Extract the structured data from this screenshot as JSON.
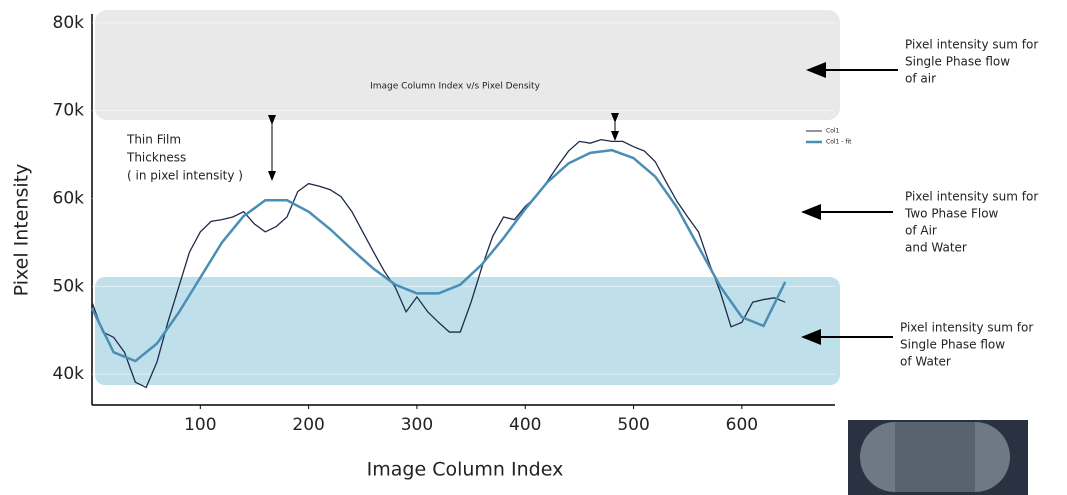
{
  "chart_data": {
    "type": "line",
    "title": "Image Column Index v/s Pixel Density",
    "x_label": "Image Column Index",
    "y_label": "Pixel Intensity",
    "xlim": [
      0,
      686
    ],
    "xticks": [
      100,
      200,
      300,
      400,
      500,
      600
    ],
    "ylim": [
      36500,
      81000
    ],
    "yticks": [
      {
        "value": 40000,
        "label": "40k"
      },
      {
        "value": 50000,
        "label": "50k"
      },
      {
        "value": 60000,
        "label": "60k"
      },
      {
        "value": 70000,
        "label": "70k"
      },
      {
        "value": 80000,
        "label": "80k"
      }
    ],
    "series": [
      {
        "name": "Col1",
        "color": "#1e2a4a",
        "x": [
          0,
          10,
          20,
          30,
          40,
          50,
          60,
          70,
          80,
          90,
          100,
          110,
          120,
          130,
          140,
          150,
          160,
          170,
          180,
          190,
          200,
          210,
          220,
          230,
          240,
          250,
          260,
          270,
          280,
          290,
          300,
          310,
          320,
          330,
          340,
          350,
          360,
          370,
          380,
          390,
          400,
          410,
          420,
          430,
          440,
          450,
          460,
          470,
          480,
          490,
          500,
          510,
          520,
          530,
          540,
          550,
          560,
          570,
          580,
          590,
          600,
          610,
          620,
          630,
          640
        ],
        "values": [
          48200,
          44800,
          44200,
          42500,
          39100,
          38500,
          41400,
          45900,
          49900,
          53900,
          56200,
          57400,
          57600,
          57900,
          58500,
          57100,
          56200,
          56800,
          57900,
          60800,
          61700,
          61400,
          61000,
          60200,
          58500,
          56200,
          53900,
          51700,
          49900,
          47100,
          48800,
          47100,
          45900,
          44800,
          44800,
          48200,
          52200,
          55700,
          57900,
          57600,
          59100,
          60200,
          61900,
          63700,
          65400,
          66500,
          66300,
          66700,
          66500,
          66500,
          65900,
          65400,
          64200,
          61900,
          59700,
          57900,
          56200,
          52600,
          49400,
          45400,
          45900,
          48200,
          48500,
          48700,
          48200
        ]
      },
      {
        "name": "Col1 - fit",
        "color": "#4a8db5",
        "x": [
          0,
          20,
          40,
          60,
          80,
          100,
          120,
          140,
          160,
          180,
          200,
          220,
          240,
          260,
          280,
          300,
          320,
          340,
          360,
          380,
          400,
          420,
          440,
          460,
          480,
          500,
          520,
          540,
          560,
          580,
          600,
          620,
          640
        ],
        "values": [
          47500,
          42500,
          41500,
          43500,
          47000,
          51000,
          55000,
          58000,
          59800,
          59800,
          58500,
          56500,
          54200,
          52000,
          50200,
          49200,
          49200,
          50200,
          52500,
          55500,
          58800,
          61800,
          64000,
          65200,
          65500,
          64600,
          62500,
          59000,
          54500,
          50000,
          46500,
          45500,
          50500
        ]
      }
    ],
    "annotations": {
      "thin_film": [
        "Thin Film",
        "Thickness",
        "( in pixel intensity )"
      ],
      "air": [
        "Pixel intensity sum for",
        "Single Phase flow",
        " of air"
      ],
      "two_phase": [
        "Pixel intensity sum for",
        "Two Phase Flow",
        "of Air",
        "and Water"
      ],
      "water": [
        "Pixel intensity sum for",
        "Single Phase flow",
        "of Water"
      ]
    }
  }
}
